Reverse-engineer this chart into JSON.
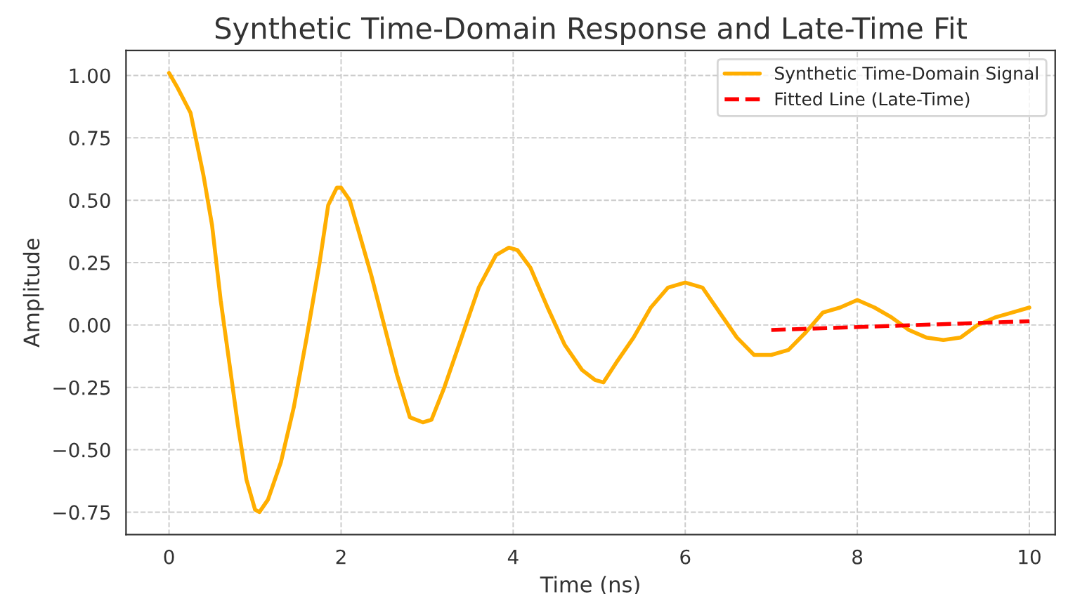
{
  "chart_data": {
    "type": "line",
    "title": "Synthetic Time-Domain Response and Late-Time Fit",
    "xlabel": "Time (ns)",
    "ylabel": "Amplitude",
    "xlim": [
      -0.5,
      10.3
    ],
    "ylim": [
      -0.84,
      1.1
    ],
    "xticks": [
      0,
      2,
      4,
      6,
      8,
      10
    ],
    "yticks": [
      {
        "value": -0.75,
        "label": "−0.75"
      },
      {
        "value": -0.5,
        "label": "−0.50"
      },
      {
        "value": -0.25,
        "label": "−0.25"
      },
      {
        "value": 0,
        "label": "0.00"
      },
      {
        "value": 0.25,
        "label": "0.25"
      },
      {
        "value": 0.5,
        "label": "0.50"
      },
      {
        "value": 0.75,
        "label": "0.75"
      },
      {
        "value": 1,
        "label": "1.00"
      }
    ],
    "grid": true,
    "legend": "top right",
    "series": [
      {
        "name": "Synthetic Time-Domain Signal",
        "color": "#ffae00",
        "line_style": "solid",
        "x": [
          0,
          0.1,
          0.25,
          0.4,
          0.5,
          0.6,
          0.7,
          0.8,
          0.9,
          1.0,
          1.05,
          1.15,
          1.3,
          1.45,
          1.6,
          1.75,
          1.85,
          1.95,
          2.0,
          2.1,
          2.2,
          2.35,
          2.5,
          2.65,
          2.8,
          2.95,
          3.05,
          3.2,
          3.4,
          3.6,
          3.8,
          3.95,
          4.05,
          4.2,
          4.4,
          4.6,
          4.8,
          4.95,
          5.05,
          5.2,
          5.4,
          5.6,
          5.8,
          6.0,
          6.2,
          6.4,
          6.6,
          6.8,
          7.0,
          7.2,
          7.4,
          7.6,
          7.8,
          8.0,
          8.2,
          8.4,
          8.6,
          8.8,
          9.0,
          9.2,
          9.4,
          9.6,
          9.8,
          10
        ],
        "values": [
          1.01,
          0.95,
          0.85,
          0.6,
          0.4,
          0.1,
          -0.15,
          -0.4,
          -0.62,
          -0.74,
          -0.75,
          -0.7,
          -0.55,
          -0.33,
          -0.05,
          0.25,
          0.48,
          0.55,
          0.55,
          0.5,
          0.38,
          0.2,
          0.0,
          -0.2,
          -0.37,
          -0.39,
          -0.38,
          -0.25,
          -0.05,
          0.15,
          0.28,
          0.31,
          0.3,
          0.23,
          0.07,
          -0.08,
          -0.18,
          -0.22,
          -0.23,
          -0.15,
          -0.05,
          0.07,
          0.15,
          0.17,
          0.15,
          0.05,
          -0.05,
          -0.12,
          -0.12,
          -0.1,
          -0.03,
          0.05,
          0.07,
          0.1,
          0.07,
          0.03,
          -0.02,
          -0.05,
          -0.06,
          -0.05,
          0.0,
          0.03,
          0.05,
          0.07
        ]
      },
      {
        "name": "Fitted Line (Late-Time)",
        "color": "#ff0000",
        "line_style": "dashed",
        "x": [
          7,
          10
        ],
        "values": [
          -0.02,
          0.015
        ]
      }
    ]
  }
}
